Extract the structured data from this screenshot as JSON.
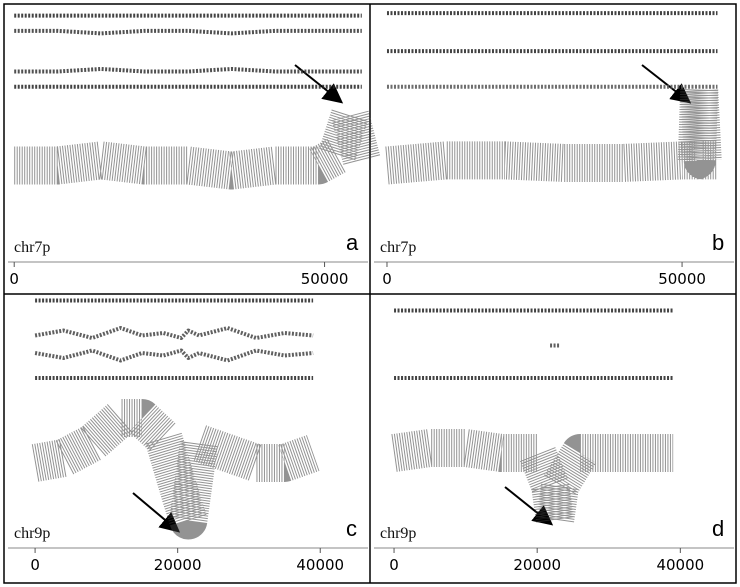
{
  "chart_data": [
    {
      "type": "scatter",
      "panel": "a",
      "label": "chr7p",
      "x": [
        0,
        7000,
        14000,
        21000,
        28000,
        35000,
        42000,
        49000,
        52000,
        54100,
        56000
      ],
      "xlim": [
        -1000,
        57000
      ],
      "xticks": [
        0,
        50000
      ],
      "ylim": [
        0,
        100
      ],
      "series": [
        {
          "color": "#222222",
          "marker": "dot",
          "values": [
            97,
            97,
            97,
            97,
            97,
            97,
            97,
            97,
            97,
            97,
            97
          ]
        },
        {
          "color": "#333333",
          "marker": "dot",
          "values": [
            91,
            91,
            90,
            91,
            91,
            90,
            91,
            91,
            91,
            91,
            91
          ]
        },
        {
          "color": "#333333",
          "marker": "dot",
          "values": [
            75,
            75,
            76,
            75,
            75,
            76,
            75,
            75,
            75,
            75,
            75
          ]
        },
        {
          "color": "#222222",
          "marker": "dot",
          "values": [
            69,
            69,
            69,
            69,
            69,
            69,
            69,
            69,
            69,
            69,
            69
          ]
        },
        {
          "color": "#3a3a3a",
          "marker": "band",
          "values": [
            38,
            38,
            40,
            38,
            38,
            36,
            38,
            38,
            42,
            58,
            40
          ]
        }
      ]
    },
    {
      "type": "scatter",
      "panel": "b",
      "label": "chr7p",
      "x": [
        0,
        10000,
        20000,
        30000,
        40000,
        50000,
        52500,
        52900,
        53500,
        56000
      ],
      "xlim": [
        -2200,
        58800
      ],
      "xticks": [
        0,
        50000
      ],
      "ylim": [
        0,
        100
      ],
      "series": [
        {
          "color": "#222222",
          "marker": "dot",
          "values": [
            98,
            98,
            98,
            98,
            98,
            98,
            98,
            98,
            98,
            98
          ]
        },
        {
          "color": "#222222",
          "marker": "dot",
          "values": [
            83,
            83,
            83,
            83,
            83,
            83,
            83,
            83,
            83,
            83
          ]
        },
        {
          "color": "#555555",
          "marker": "dot",
          "values": [
            69,
            69,
            69,
            69,
            69,
            69,
            69,
            69,
            69,
            69
          ]
        },
        {
          "color": "#3a3a3a",
          "marker": "band",
          "values": [
            38,
            40,
            40,
            39,
            39,
            40,
            40,
            68,
            40,
            40
          ]
        }
      ]
    },
    {
      "type": "scatter",
      "panel": "c",
      "label": "chr9p",
      "x": [
        0,
        4000,
        8000,
        12000,
        15000,
        18000,
        20500,
        21500,
        23000,
        27000,
        31000,
        35000,
        39000
      ],
      "xlim": [
        -3800,
        46700
      ],
      "xticks": [
        0,
        20000,
        40000
      ],
      "ylim": [
        0,
        100
      ],
      "series": [
        {
          "color": "#222222",
          "marker": "dot",
          "values": [
            99,
            99,
            99,
            99,
            99,
            99,
            99,
            99,
            99,
            99,
            99,
            99,
            99
          ]
        },
        {
          "color": "#444444",
          "marker": "dot",
          "values": [
            85,
            87,
            84,
            88,
            85,
            86,
            84,
            87,
            85,
            88,
            84,
            86,
            85
          ]
        },
        {
          "color": "#444444",
          "marker": "dot",
          "values": [
            78,
            76,
            79,
            75,
            78,
            77,
            79,
            76,
            78,
            75,
            79,
            77,
            78
          ]
        },
        {
          "color": "#222222",
          "marker": "dot",
          "values": [
            68,
            68,
            68,
            68,
            68,
            68,
            68,
            68,
            68,
            68,
            68,
            68,
            68
          ]
        },
        {
          "color": "#3a3a3a",
          "marker": "band",
          "values": [
            34,
            36,
            42,
            52,
            52,
            44,
            20,
            11,
            42,
            38,
            34,
            34,
            38
          ]
        }
      ]
    },
    {
      "type": "scatter",
      "panel": "d",
      "label": "chr9p",
      "x": [
        0,
        5000,
        10000,
        15000,
        20000,
        21800,
        22500,
        23200,
        26000,
        32000,
        39000
      ],
      "xlim": [
        -2800,
        47500
      ],
      "xticks": [
        0,
        20000,
        40000
      ],
      "ylim": [
        0,
        100
      ],
      "series": [
        {
          "color": "#222222",
          "marker": "dot",
          "values": [
            95,
            95,
            95,
            95,
            95,
            95,
            95,
            95,
            95,
            95,
            95
          ]
        },
        {
          "color": "#444444",
          "marker": "dot",
          "values": [
            null,
            null,
            null,
            null,
            null,
            81,
            81,
            81,
            null,
            null,
            null
          ]
        },
        {
          "color": "#222222",
          "marker": "dot",
          "values": [
            68,
            68,
            68,
            68,
            68,
            68,
            68,
            68,
            68,
            68,
            68
          ]
        },
        {
          "color": "#3a3a3a",
          "marker": "band",
          "values": [
            38,
            40,
            40,
            38,
            38,
            25,
            11,
            25,
            38,
            38,
            38
          ]
        }
      ]
    }
  ]
}
